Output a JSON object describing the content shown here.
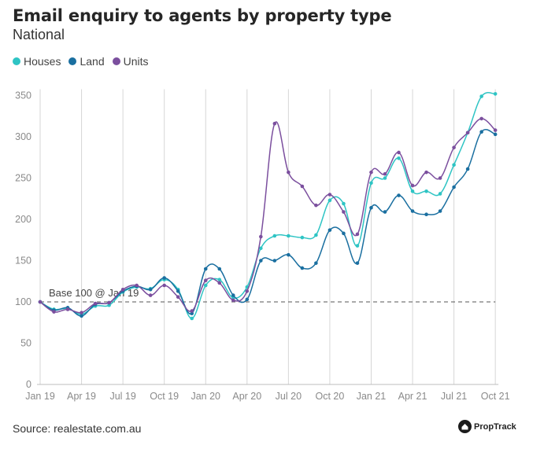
{
  "chart_data": {
    "type": "line",
    "title": "Email enquiry to agents by property type",
    "subtitle": "National",
    "ylim": [
      0,
      350
    ],
    "yticks": [
      0,
      50,
      100,
      150,
      200,
      250,
      300,
      350
    ],
    "xtick_labels": [
      "Jan 19",
      "Apr 19",
      "Jul 19",
      "Oct 19",
      "Jan 20",
      "Apr 20",
      "Jul 20",
      "Oct 20",
      "Jan 21",
      "Apr 21",
      "Jul 21",
      "Oct 21"
    ],
    "x_months": [
      "Jan 19",
      "Feb 19",
      "Mar 19",
      "Apr 19",
      "May 19",
      "Jun 19",
      "Jul 19",
      "Aug 19",
      "Sep 19",
      "Oct 19",
      "Nov 19",
      "Dec 19",
      "Jan 20",
      "Feb 20",
      "Mar 20",
      "Apr 20",
      "May 20",
      "Jun 20",
      "Jul 20",
      "Aug 20",
      "Sep 20",
      "Oct 20",
      "Nov 20",
      "Dec 20",
      "Jan 21",
      "Feb 21",
      "Mar 21",
      "Apr 21",
      "May 21",
      "Jun 21",
      "Jul 21",
      "Aug 21",
      "Sep 21",
      "Oct 21"
    ],
    "grid": "vertical lines",
    "legend_position": "top-left",
    "baseline": {
      "value": 100,
      "label": "Base 100 @ Jan 19"
    },
    "series": [
      {
        "name": "Houses",
        "color": "#2ec4c4",
        "values": [
          100,
          91,
          92,
          85,
          95,
          96,
          112,
          118,
          116,
          127,
          115,
          80,
          120,
          127,
          105,
          118,
          165,
          180,
          180,
          178,
          181,
          223,
          219,
          168,
          244,
          250,
          274,
          234,
          234,
          231,
          266,
          305,
          349,
          352
        ]
      },
      {
        "name": "Land",
        "color": "#1a6fa0",
        "values": [
          100,
          90,
          93,
          83,
          97,
          99,
          113,
          119,
          115,
          129,
          113,
          86,
          140,
          140,
          108,
          103,
          150,
          150,
          157,
          141,
          147,
          187,
          183,
          147,
          214,
          209,
          229,
          210,
          206,
          210,
          239,
          261,
          306,
          303
        ]
      },
      {
        "name": "Units",
        "color": "#7b4f9e",
        "values": [
          100,
          88,
          91,
          87,
          98,
          99,
          115,
          120,
          108,
          120,
          106,
          89,
          126,
          123,
          102,
          113,
          179,
          316,
          257,
          240,
          217,
          230,
          209,
          182,
          257,
          255,
          281,
          241,
          257,
          250,
          287,
          305,
          322,
          308
        ]
      }
    ]
  },
  "footer": {
    "source": "Source: realestate.com.au",
    "brand": "PropTrack"
  }
}
